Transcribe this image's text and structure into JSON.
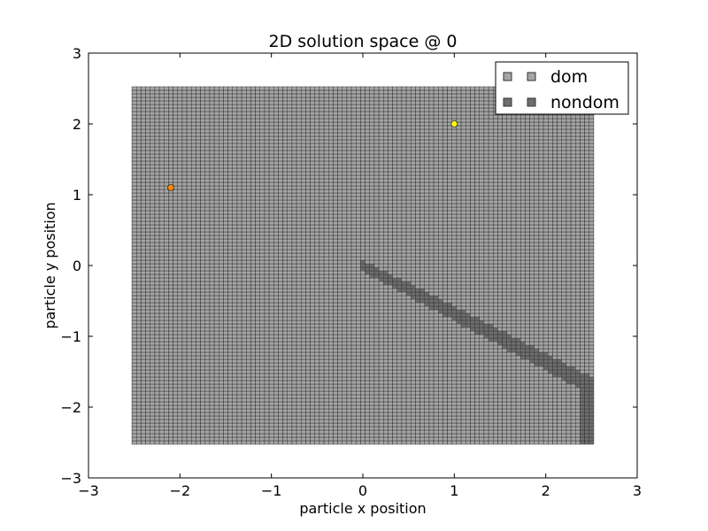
{
  "chart_data": {
    "type": "scatter",
    "title": "2D solution space @ 0",
    "xlabel": "particle x position",
    "ylabel": "particle y position",
    "xlim": [
      -3,
      3
    ],
    "ylim": [
      -3,
      3
    ],
    "xticks": [
      -3,
      -2,
      -1,
      0,
      1,
      2,
      3
    ],
    "yticks": [
      -3,
      -2,
      -1,
      0,
      1,
      2,
      3
    ],
    "xtick_labels": [
      "−3",
      "−2",
      "−1",
      "0",
      "1",
      "2",
      "3"
    ],
    "ytick_labels": [
      "−3",
      "−2",
      "−1",
      "0",
      "1",
      "2",
      "3"
    ],
    "grid": false,
    "legend_position": "top-right",
    "series": [
      {
        "name": "dom",
        "marker": "square",
        "color": "#a6a6a6",
        "edge_color": "#333333",
        "grid_spacing": 0.05,
        "x_range": [
          -2.5,
          2.5
        ],
        "y_range": [
          -2.5,
          2.5
        ]
      },
      {
        "name": "nondom",
        "marker": "square",
        "color": "#6e6e6e",
        "edge_color": "#333333",
        "grid_spacing": 0.05,
        "band": {
          "x_start": 0.0,
          "x_end": 2.5,
          "y_at_start": 0.0,
          "slope": -0.68,
          "half_width_y": 0.08,
          "widen_per_x": 0.02,
          "tail_x": 2.4,
          "tail_y_min": -2.5
        }
      }
    ],
    "points": [
      {
        "x": -2.1,
        "y": 1.1,
        "color": "#ff8c00"
      },
      {
        "x": 1.0,
        "y": 2.0,
        "color": "#ffff00"
      }
    ]
  }
}
